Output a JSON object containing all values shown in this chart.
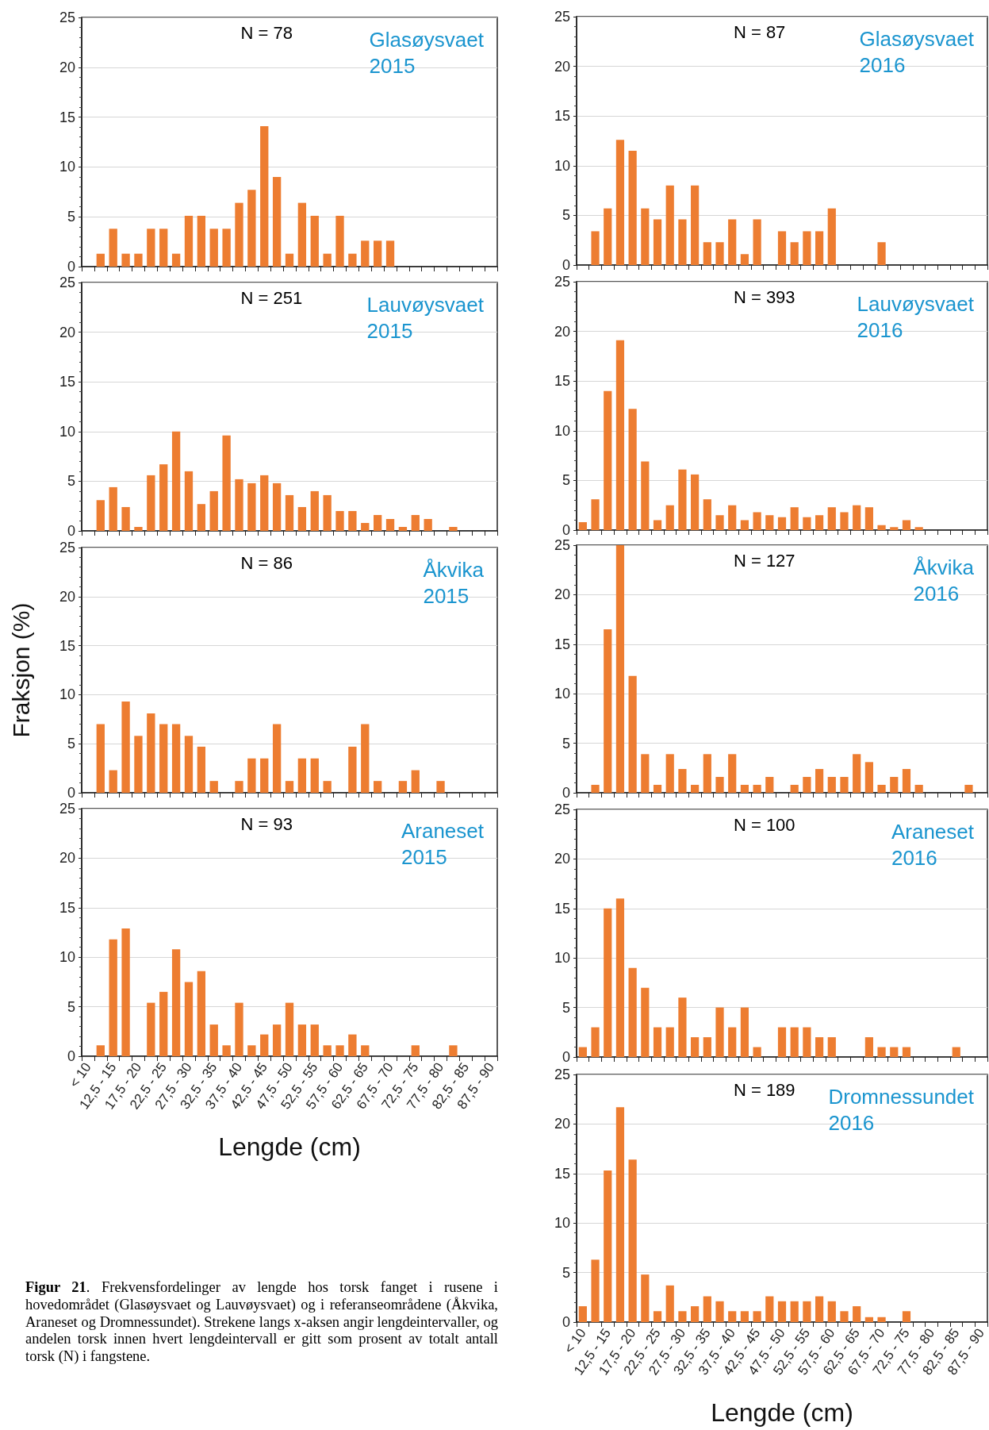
{
  "chart_data": [
    {
      "type": "bar",
      "title": "Glasøysvaet 2015",
      "annotations": [
        "N = 78"
      ],
      "categories": [
        null,
        null,
        null,
        null,
        null,
        null,
        null,
        null,
        null,
        null,
        null,
        null,
        null,
        null,
        null,
        null,
        null,
        null,
        null,
        null,
        null,
        null,
        null,
        null,
        null,
        null,
        null,
        null,
        null,
        null,
        null,
        null,
        null
      ],
      "color": "#ed7d31",
      "values": [
        0,
        1.3,
        3.8,
        1.3,
        1.3,
        3.8,
        3.8,
        1.3,
        5.1,
        5.1,
        3.8,
        3.8,
        6.4,
        7.7,
        14.1,
        9.0,
        1.3,
        6.4,
        5.1,
        1.3,
        5.1,
        1.3,
        2.6,
        2.6,
        2.6,
        0,
        0,
        0,
        0,
        0,
        0,
        0,
        0
      ],
      "ylim": [
        0,
        25
      ],
      "yticks": [
        0,
        5,
        10,
        15,
        20,
        25
      ],
      "grid": "y",
      "tick_labels": "y"
    },
    {
      "type": "bar",
      "title": "Glasøysvaet 2016",
      "annotations": [
        "N = 87"
      ],
      "categories": [
        null,
        null,
        null,
        null,
        null,
        null,
        null,
        null,
        null,
        null,
        null,
        null,
        null,
        null,
        null,
        null,
        null,
        null,
        null,
        null,
        null,
        null,
        null,
        null,
        null,
        null,
        null,
        null,
        null,
        null,
        null,
        null,
        null
      ],
      "color": "#ed7d31",
      "values": [
        0,
        3.4,
        5.7,
        12.6,
        11.5,
        5.7,
        4.6,
        8.0,
        4.6,
        8.0,
        2.3,
        2.3,
        4.6,
        1.1,
        4.6,
        0,
        3.4,
        2.3,
        3.4,
        3.4,
        5.7,
        0,
        0,
        0,
        2.3,
        0,
        0,
        0,
        0,
        0,
        0,
        0,
        0
      ],
      "ylim": [
        0,
        25
      ],
      "yticks": [
        0,
        5,
        10,
        15,
        20,
        25
      ],
      "grid": "y",
      "tick_labels": "y"
    },
    {
      "type": "bar",
      "title": "Lauvøysvaet 2015",
      "annotations": [
        "N = 251"
      ],
      "categories": [
        null,
        null,
        null,
        null,
        null,
        null,
        null,
        null,
        null,
        null,
        null,
        null,
        null,
        null,
        null,
        null,
        null,
        null,
        null,
        null,
        null,
        null,
        null,
        null,
        null,
        null,
        null,
        null,
        null,
        null,
        null,
        null,
        null
      ],
      "color": "#ed7d31",
      "values": [
        0,
        3.1,
        4.4,
        2.4,
        0.4,
        5.6,
        6.7,
        10.0,
        6.0,
        2.7,
        4.0,
        9.6,
        5.2,
        4.8,
        5.6,
        4.8,
        3.6,
        2.4,
        4.0,
        3.6,
        2.0,
        2.0,
        0.8,
        1.6,
        1.2,
        0.4,
        1.6,
        1.2,
        0,
        0.4,
        0,
        0,
        0
      ],
      "ylim": [
        0,
        25
      ],
      "yticks": [
        0,
        5,
        10,
        15,
        20,
        25
      ],
      "grid": "y",
      "tick_labels": "y"
    },
    {
      "type": "bar",
      "title": "Lauvøysvaet 2016",
      "annotations": [
        "N = 393"
      ],
      "categories": [
        null,
        null,
        null,
        null,
        null,
        null,
        null,
        null,
        null,
        null,
        null,
        null,
        null,
        null,
        null,
        null,
        null,
        null,
        null,
        null,
        null,
        null,
        null,
        null,
        null,
        null,
        null,
        null,
        null,
        null,
        null,
        null,
        null
      ],
      "color": "#ed7d31",
      "values": [
        0.8,
        3.1,
        14.0,
        19.1,
        12.2,
        6.9,
        1.0,
        2.5,
        6.1,
        5.6,
        3.1,
        1.5,
        2.5,
        1.0,
        1.8,
        1.5,
        1.3,
        2.3,
        1.3,
        1.5,
        2.3,
        1.8,
        2.5,
        2.3,
        0.5,
        0.3,
        1.0,
        0.3,
        0,
        0,
        0,
        0,
        0
      ],
      "ylim": [
        0,
        25
      ],
      "yticks": [
        0,
        5,
        10,
        15,
        20,
        25
      ],
      "grid": "y",
      "tick_labels": "y"
    },
    {
      "type": "bar",
      "title": "Åkvika 2015",
      "ylabel": "Fraksjon (%)",
      "annotations": [
        "N = 86"
      ],
      "categories": [
        null,
        null,
        null,
        null,
        null,
        null,
        null,
        null,
        null,
        null,
        null,
        null,
        null,
        null,
        null,
        null,
        null,
        null,
        null,
        null,
        null,
        null,
        null,
        null,
        null,
        null,
        null,
        null,
        null,
        null,
        null,
        null,
        null
      ],
      "color": "#ed7d31",
      "values": [
        0,
        7.0,
        2.3,
        9.3,
        5.8,
        8.1,
        7.0,
        7.0,
        5.8,
        4.7,
        1.2,
        0,
        1.2,
        3.5,
        3.5,
        7.0,
        1.2,
        3.5,
        3.5,
        1.2,
        0,
        4.7,
        7.0,
        1.2,
        0,
        1.2,
        2.3,
        0,
        1.2,
        0,
        0,
        0,
        0
      ],
      "ylim": [
        0,
        25
      ],
      "yticks": [
        0,
        5,
        10,
        15,
        20,
        25
      ],
      "grid": "y",
      "tick_labels": "y"
    },
    {
      "type": "bar",
      "title": "Åkvika 2016",
      "annotations": [
        "N = 127"
      ],
      "categories": [
        null,
        null,
        null,
        null,
        null,
        null,
        null,
        null,
        null,
        null,
        null,
        null,
        null,
        null,
        null,
        null,
        null,
        null,
        null,
        null,
        null,
        null,
        null,
        null,
        null,
        null,
        null,
        null,
        null,
        null,
        null,
        null,
        null
      ],
      "color": "#ed7d31",
      "values": [
        0,
        0.8,
        16.5,
        25,
        11.8,
        3.9,
        0.8,
        3.9,
        2.4,
        0.8,
        3.9,
        1.6,
        3.9,
        0.8,
        0.8,
        1.6,
        0,
        0.8,
        1.6,
        2.4,
        1.6,
        1.6,
        3.9,
        3.1,
        0.8,
        1.6,
        2.4,
        0.8,
        0,
        0,
        0,
        0.8,
        0
      ],
      "ylim": [
        0,
        25
      ],
      "yticks": [
        0,
        5,
        10,
        15,
        20,
        25
      ],
      "grid": "y",
      "tick_labels": "y"
    },
    {
      "type": "bar",
      "title": "Araneset 2015",
      "xlabel": "Lengde (cm)",
      "annotations": [
        "N = 93",
        "Figur 21. Frekvensfordelinger av lengde hos torsk fanget i rusene i hovedområdet (Glasøysvaet og Lauvøysvaet) og i referanseområdene (Åkvika, Araneset og Dromnessundet). Strekene langs x-aksen angir lengdeintervaller, og andelen torsk innen hvert lengdeintervall er gitt som prosent av totalt antall torsk (N) i fangstene."
      ],
      "categories": [
        "< 10",
        null,
        "12,5 - 15",
        null,
        "17,5 - 20",
        null,
        "22,5 - 25",
        null,
        "27,5 - 30",
        null,
        "32,5 - 35",
        null,
        "37,5 - 40",
        null,
        "42,5 - 45",
        null,
        "47,5 - 50",
        null,
        "52,5 - 55",
        null,
        "57,5 - 60",
        null,
        "62,5 - 65",
        null,
        "67,5 - 70",
        null,
        "72,5 - 75",
        null,
        "77,5 - 80",
        null,
        "82,5 - 85",
        null,
        "87,5 - 90"
      ],
      "color": "#ed7d31",
      "values": [
        0,
        1.1,
        11.8,
        12.9,
        0,
        5.4,
        6.5,
        10.8,
        7.5,
        8.6,
        3.2,
        1.1,
        5.4,
        1.1,
        2.2,
        3.2,
        5.4,
        3.2,
        3.2,
        1.1,
        1.1,
        2.2,
        1.1,
        0,
        0,
        0,
        1.1,
        0,
        0,
        1.1,
        0,
        0,
        0
      ],
      "ylim": [
        0,
        25
      ],
      "yticks": [
        0,
        5,
        10,
        15,
        20,
        25
      ],
      "grid": "y"
    },
    {
      "type": "bar",
      "title": "Araneset 2016",
      "annotations": [
        "N = 100"
      ],
      "categories": [
        null,
        null,
        null,
        null,
        null,
        null,
        null,
        null,
        null,
        null,
        null,
        null,
        null,
        null,
        null,
        null,
        null,
        null,
        null,
        null,
        null,
        null,
        null,
        null,
        null,
        null,
        null,
        null,
        null,
        null,
        null,
        null,
        null
      ],
      "color": "#ed7d31",
      "values": [
        1,
        3,
        15,
        16,
        9,
        7,
        3,
        3,
        6,
        2,
        2,
        5,
        3,
        5,
        1,
        0,
        3,
        3,
        3,
        2,
        2,
        0,
        0,
        2,
        1,
        1,
        1,
        0,
        0,
        0,
        1,
        0,
        0
      ],
      "ylim": [
        0,
        25
      ],
      "yticks": [
        0,
        5,
        10,
        15,
        20,
        25
      ],
      "grid": "y",
      "tick_labels": "y"
    },
    {
      "type": "bar",
      "title": "Dromnessundet 2016",
      "xlabel": "Lengde (cm)",
      "annotations": [
        "N = 189"
      ],
      "categories": [
        "< 10",
        null,
        "12,5 - 15",
        null,
        "17,5 - 20",
        null,
        "22,5 - 25",
        null,
        "27,5 - 30",
        null,
        "32,5 - 35",
        null,
        "37,5 - 40",
        null,
        "42,5 - 45",
        null,
        "47,5 - 50",
        null,
        "52,5 - 55",
        null,
        "57,5 - 60",
        null,
        "62,5 - 65",
        null,
        "67,5 - 70",
        null,
        "72,5 - 75",
        null,
        "77,5 - 80",
        null,
        "82,5 - 85",
        null,
        "87,5 - 90"
      ],
      "color": "#ed7d31",
      "values": [
        1.6,
        6.3,
        15.3,
        21.7,
        16.4,
        4.8,
        1.1,
        3.7,
        1.1,
        1.6,
        2.6,
        2.1,
        1.1,
        1.1,
        1.1,
        2.6,
        2.1,
        2.1,
        2.1,
        2.6,
        2.1,
        1.1,
        1.6,
        0.5,
        0.5,
        0,
        1.1,
        0,
        0,
        0,
        0,
        0,
        0
      ],
      "ylim": [
        0,
        25
      ],
      "yticks": [
        0,
        5,
        10,
        15,
        20,
        25
      ],
      "grid": "y"
    }
  ]
}
